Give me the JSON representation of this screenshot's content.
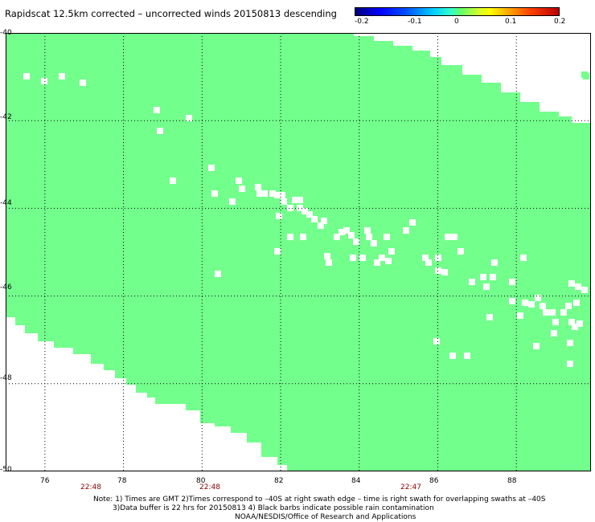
{
  "title": "Rapidscat 12.5km corrected – uncorrected winds 20150813 descending",
  "colorbar": {
    "ticks": [
      "-0.2",
      "-0.1",
      "0",
      "0.1",
      "0.2"
    ]
  },
  "map": {
    "lon_range": [
      75.0,
      89.9
    ],
    "lat_range": [
      -50,
      -40
    ],
    "x_ticks": [
      "76",
      "78",
      "80",
      "82",
      "84",
      "86",
      "88"
    ],
    "y_ticks": [
      "-40",
      "-42",
      "-44",
      "-46",
      "-48",
      "-50"
    ],
    "times": [
      "22:48",
      "22:48",
      "22:47"
    ],
    "swath_color": "#73ff8c",
    "time_color": "#8b0000"
  },
  "notes": [
    "Note: 1) Times are GMT 2)Times correspond to –40S at right swath edge – time is right swath for overlapping swaths at –40S",
    "3)Data buffer is 22 hrs for 20150813 4) Black barbs indicate possible rain contamination",
    "NOAA/NESDIS/Office of Research and Applications"
  ]
}
